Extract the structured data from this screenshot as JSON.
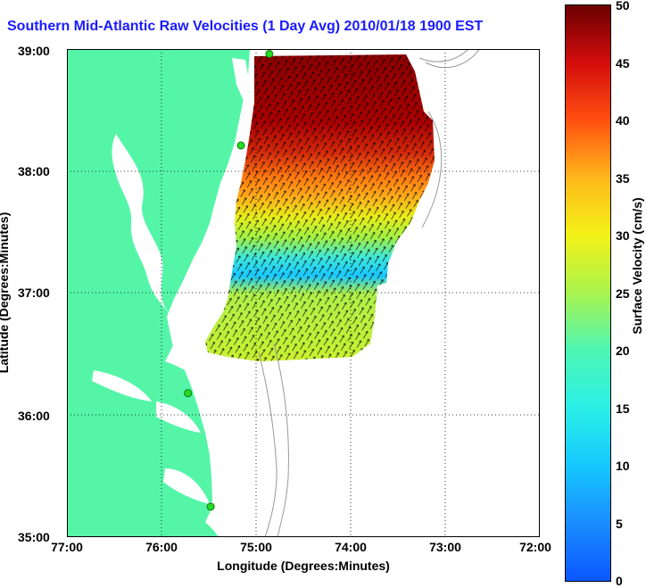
{
  "title": "Southern Mid-Atlantic Raw Velocities (1 Day Avg) 2010/01/18 1900 EST",
  "map": {
    "x_ticks": [
      "77:00",
      "76:00",
      "75:00",
      "74:00",
      "73:00",
      "72:00"
    ],
    "y_ticks": [
      "39:00",
      "38:00",
      "37:00",
      "36:00",
      "35:00"
    ],
    "xlabel": "Longitude (Degrees:Minutes)",
    "ylabel": "Latitude (Degrees:Minutes)",
    "lon_range": [
      -77,
      -72
    ],
    "lat_range": [
      35,
      39
    ],
    "grid": "dotted",
    "land_color": "#55f5a8",
    "station_color": "#22dd22",
    "stations": [
      {
        "lon": -74.86,
        "lat": 38.96
      },
      {
        "lon": -75.16,
        "lat": 38.21
      },
      {
        "lon": -75.72,
        "lat": 36.18
      },
      {
        "lon": -75.48,
        "lat": 35.25
      }
    ]
  },
  "colorbar": {
    "ticks": [
      "50",
      "45",
      "40",
      "35",
      "30",
      "25",
      "20",
      "15",
      "10",
      "5",
      "0"
    ],
    "label": "Surface Velocity (cm/s)",
    "range": [
      0,
      50
    ],
    "colors": [
      "#0a57ff",
      "#1b8cff",
      "#15c8ff",
      "#2aefe7",
      "#4df6b4",
      "#a9f34e",
      "#f3f218",
      "#ffb81a",
      "#ff5010",
      "#d40c0c",
      "#6b0000"
    ]
  }
}
